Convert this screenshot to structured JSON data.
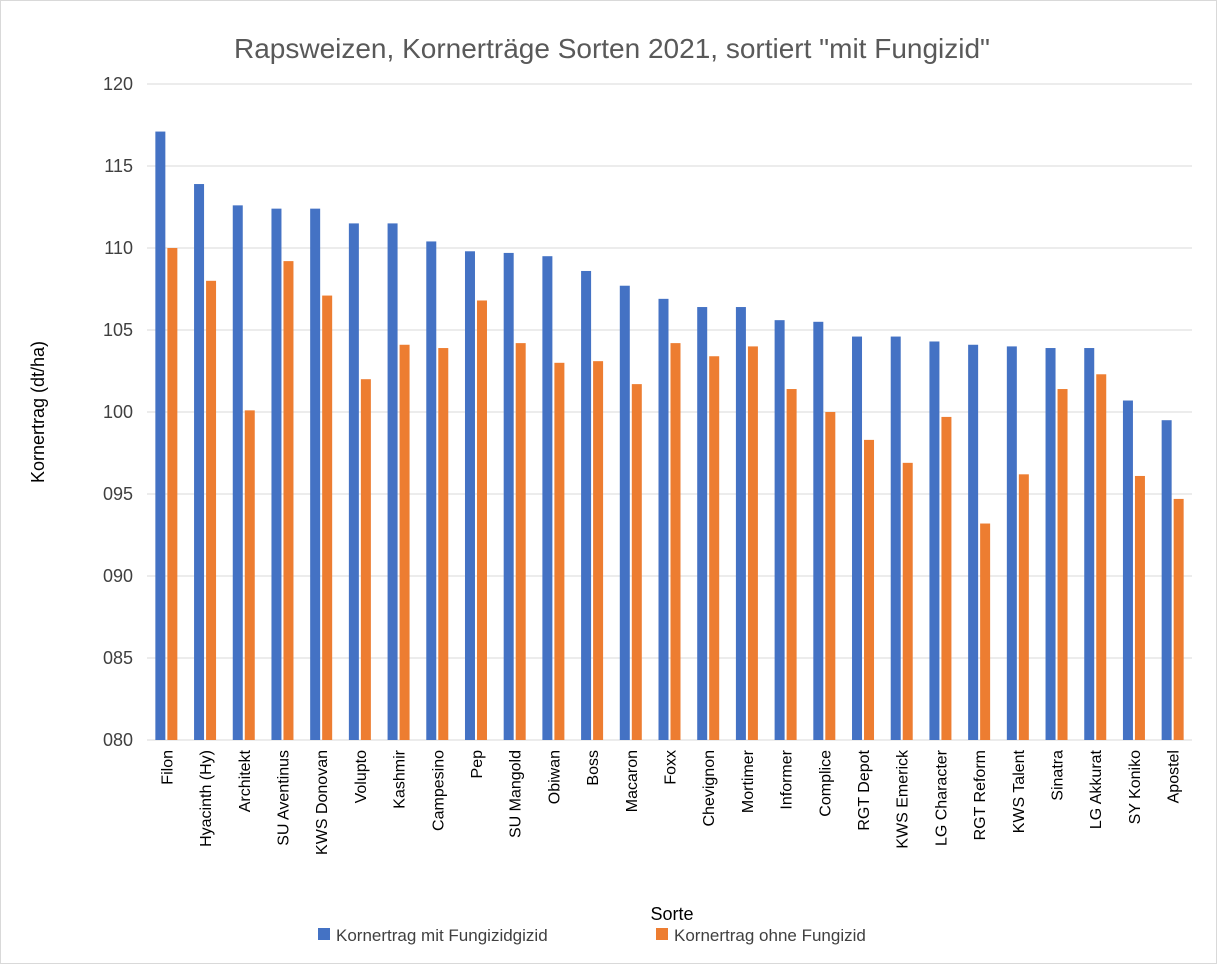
{
  "chart_data": {
    "type": "bar",
    "title": "Rapsweizen, Kornerträge Sorten 2021, sortiert \"mit Fungizid\"",
    "x_label": "Sorte",
    "y_label": "Kornertrag (dt/ha)",
    "categories": [
      "Filon",
      "Hyacinth (Hy)",
      "Architekt",
      "SU Aventinus",
      "KWS Donovan",
      "Volupto",
      "Kashmir",
      "Campesino",
      "Pep",
      "SU Mangold",
      "Obiwan",
      "Boss",
      "Macaron",
      "Foxx",
      "Chevignon",
      "Mortimer",
      "Informer",
      "Complice",
      "RGT Depot",
      "KWS Emerick",
      "LG Character",
      "RGT Reform",
      "KWS Talent",
      "Sinatra",
      "LG Akkurat",
      "SY Koniko",
      "Apostel"
    ],
    "series": [
      {
        "name": "Kornertrag mit Fungizidgizid",
        "color": "#4472c4",
        "values": [
          117.1,
          113.9,
          112.6,
          112.4,
          112.4,
          111.5,
          111.5,
          110.4,
          109.8,
          109.7,
          109.5,
          108.6,
          107.7,
          106.9,
          106.4,
          106.4,
          105.6,
          105.5,
          104.6,
          104.6,
          104.3,
          104.1,
          104.0,
          103.9,
          103.9,
          100.7,
          99.5
        ]
      },
      {
        "name": "Kornertrag ohne Fungizid",
        "color": "#ed7d31",
        "values": [
          110.0,
          108.0,
          100.1,
          109.2,
          107.1,
          102.0,
          104.1,
          103.9,
          106.8,
          104.2,
          103.0,
          103.1,
          101.7,
          104.2,
          103.4,
          104.0,
          101.4,
          100.0,
          98.3,
          96.9,
          99.7,
          93.2,
          96.2,
          101.4,
          102.3,
          96.1,
          94.7
        ]
      }
    ],
    "ylim": [
      80,
      120
    ],
    "yticks": [
      {
        "value": 80,
        "label": "080"
      },
      {
        "value": 85,
        "label": "085"
      },
      {
        "value": 90,
        "label": "090"
      },
      {
        "value": 95,
        "label": "095"
      },
      100,
      105,
      110,
      115,
      120
    ],
    "grid": true,
    "legend": "bottom"
  }
}
